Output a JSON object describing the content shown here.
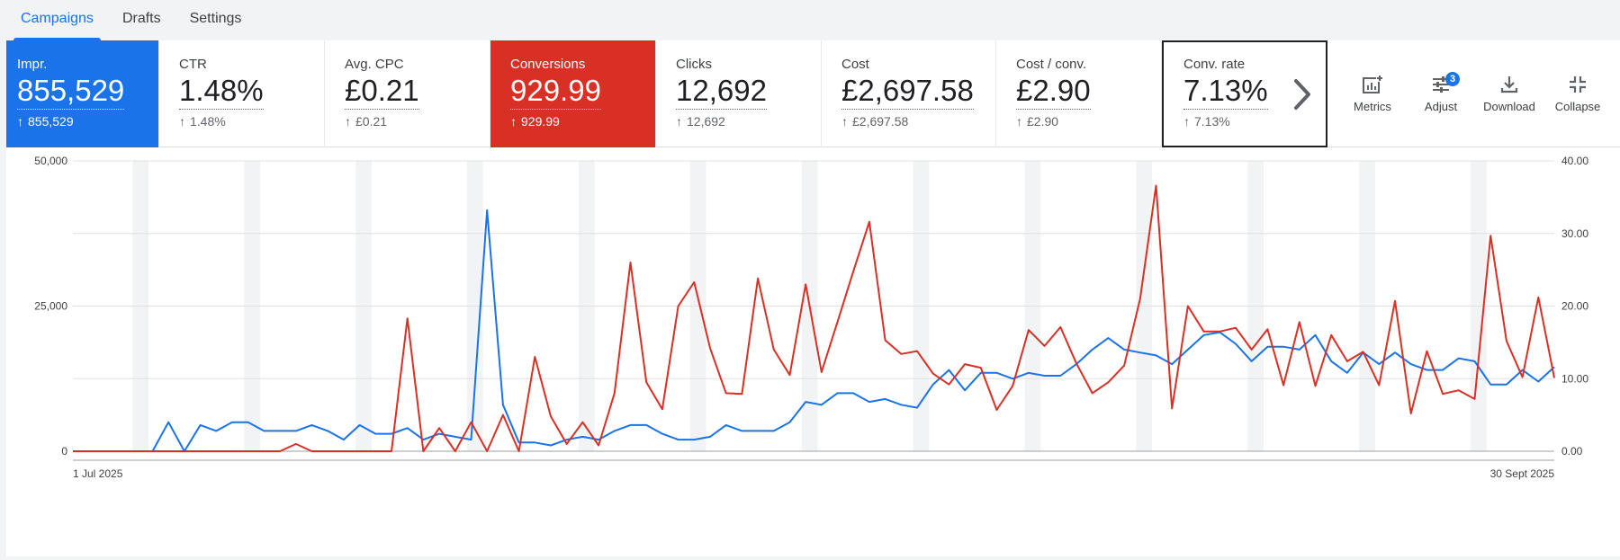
{
  "tabs": [
    {
      "label": "Campaigns",
      "active": true
    },
    {
      "label": "Drafts",
      "active": false
    },
    {
      "label": "Settings",
      "active": false
    }
  ],
  "metrics": [
    {
      "label": "Impr.",
      "value": "855,529",
      "delta": "855,529",
      "style": "blue"
    },
    {
      "label": "CTR",
      "value": "1.48%",
      "delta": "1.48%",
      "style": "plain"
    },
    {
      "label": "Avg. CPC",
      "value": "£0.21",
      "delta": "£0.21",
      "style": "plain"
    },
    {
      "label": "Conversions",
      "value": "929.99",
      "delta": "929.99",
      "style": "red"
    },
    {
      "label": "Clicks",
      "value": "12,692",
      "delta": "12,692",
      "style": "plain"
    },
    {
      "label": "Cost",
      "value": "£2,697.58",
      "delta": "£2,697.58",
      "style": "plain"
    },
    {
      "label": "Cost / conv.",
      "value": "£2.90",
      "delta": "£2.90",
      "style": "plain"
    },
    {
      "label": "Conv. rate",
      "value": "7.13%",
      "delta": "7.13%",
      "style": "outlined"
    }
  ],
  "tools": {
    "metrics_label": "Metrics",
    "adjust_label": "Adjust",
    "adjust_badge": "3",
    "download_label": "Download",
    "collapse_label": "Collapse"
  },
  "colors": {
    "impr_series": "#1a73e8",
    "conv_series": "#d93025",
    "weekend_band": "#f1f3f4"
  },
  "chart_data": {
    "type": "line",
    "x_start_label": "1 Jul 2025",
    "x_end_label": "30 Sept 2025",
    "y_left": {
      "ticks": [
        "0",
        "25,000",
        "50,000"
      ],
      "min": 0,
      "max": 50000
    },
    "y_right": {
      "ticks": [
        "0.00",
        "10.00",
        "20.00",
        "30.00",
        "40.00"
      ],
      "min": 0,
      "max": 40
    },
    "weekend_bands": true,
    "series": [
      {
        "axis": "left",
        "values": [
          0,
          0,
          0,
          0,
          0,
          0,
          5000,
          0,
          4500,
          3500,
          5000,
          5000,
          3500,
          3500,
          3500,
          4500,
          3500,
          2000,
          4500,
          3000,
          3000,
          4000,
          2000,
          3000,
          2500,
          2000,
          41500,
          8000,
          1500,
          1500,
          1000,
          2000,
          2500,
          2000,
          3500,
          4500,
          4500,
          3000,
          2000,
          2000,
          2500,
          4500,
          3500,
          3500,
          3500,
          5000,
          8500,
          8000,
          10000,
          10000,
          8500,
          9000,
          8000,
          7500,
          11500,
          14000,
          10500,
          13500,
          13500,
          12500,
          13500,
          13000,
          13000,
          15000,
          17500,
          19500,
          17500,
          17000,
          16500,
          15000,
          17500,
          20000,
          20500,
          18500,
          15500,
          18000,
          18000,
          17500,
          20000,
          15500,
          13500,
          17000,
          15000,
          17000,
          15000,
          14000,
          14000,
          16000,
          15500,
          11500,
          11500,
          14000,
          12000,
          14500
        ]
      },
      {
        "axis": "right",
        "values": [
          0,
          0,
          0,
          0,
          0,
          0,
          0,
          0,
          0,
          0,
          0,
          0,
          0,
          0,
          1,
          0,
          0,
          0,
          0,
          0,
          0,
          18.3,
          0,
          3.2,
          0,
          4,
          0,
          5,
          0,
          13,
          4.8,
          1,
          4,
          0.8,
          8,
          26,
          9.5,
          5.8,
          20,
          23.3,
          14.2,
          8,
          7.9,
          23.8,
          14,
          10.5,
          23,
          10.9,
          17.8,
          24.8,
          31.6,
          15.3,
          13.4,
          13.8,
          10.7,
          9.2,
          12,
          11.5,
          5.7,
          9,
          16.7,
          14.5,
          17.1,
          12.1,
          8,
          9.5,
          11.8,
          21,
          36.6,
          5.9,
          20,
          16.5,
          16.5,
          17,
          14,
          16.8,
          9.1,
          17.8,
          9,
          16,
          12.4,
          13.7,
          9.1,
          20.7,
          5.2,
          13.8,
          7.9,
          8.4,
          7.2,
          29.7,
          15.2,
          10.2,
          21.2,
          10.1
        ]
      }
    ]
  }
}
